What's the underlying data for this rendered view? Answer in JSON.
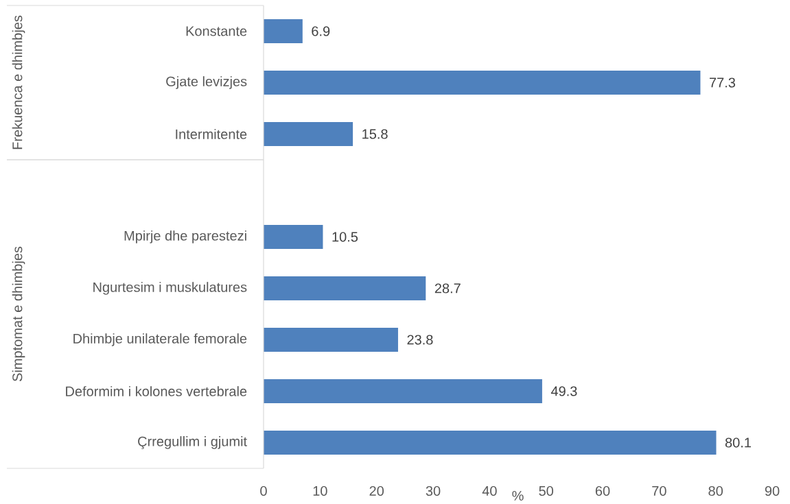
{
  "chart_data": {
    "type": "bar",
    "orientation": "horizontal",
    "categories": [
      "Konstante",
      "Gjate levizjes",
      "Intermitente",
      null,
      "Mpirje dhe parestezi",
      "Ngurtesim i muskulatures",
      "Dhimbje unilaterale femorale",
      "Deformim i kolones vertebrale",
      "Çrregullim i gjumit"
    ],
    "values": [
      6.9,
      77.3,
      15.8,
      null,
      10.5,
      28.7,
      23.8,
      49.3,
      80.1
    ],
    "color": "#4f81bd",
    "xlabel": "%",
    "xlim": [
      0,
      90
    ],
    "xticks": [
      0,
      10,
      20,
      30,
      40,
      50,
      60,
      70,
      80,
      90
    ],
    "data_labels": true,
    "annotations": [
      "Frekuenca e dhimbjes",
      "Simptomat e dhimbjes"
    ]
  }
}
